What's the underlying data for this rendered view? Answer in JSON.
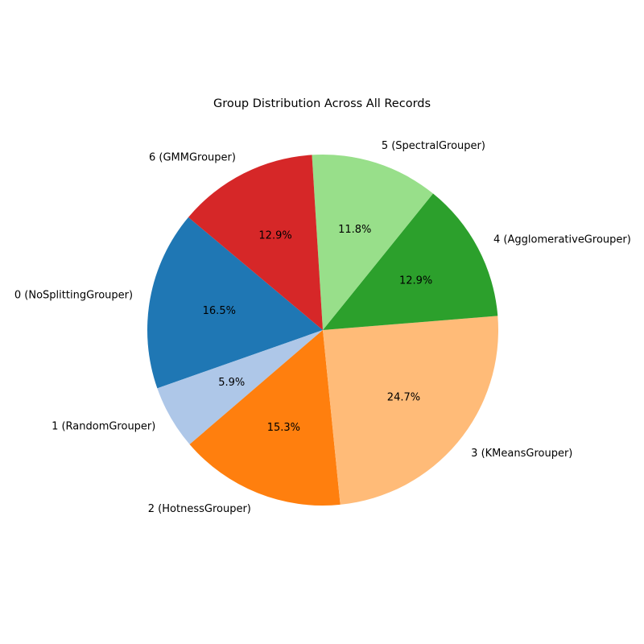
{
  "chart_data": {
    "type": "pie",
    "title": "Group Distribution Across All Records",
    "labels": [
      "0 (NoSplittingGrouper)",
      "1 (RandomGrouper)",
      "2 (HotnessGrouper)",
      "3 (KMeansGrouper)",
      "4 (AgglomerativeGrouper)",
      "5 (SpectralGrouper)",
      "6 (GMMGrouper)"
    ],
    "values": [
      16.5,
      5.9,
      15.3,
      24.7,
      12.9,
      11.8,
      12.9
    ],
    "value_labels": [
      "16.5%",
      "5.9%",
      "15.3%",
      "24.7%",
      "12.9%",
      "11.8%",
      "12.9%"
    ],
    "colors": [
      "#1f77b4",
      "#aec7e8",
      "#ff7f0e",
      "#ffbb78",
      "#2ca02c",
      "#98df8a",
      "#d62728"
    ],
    "start_angle_deg": 140,
    "direction": "counterclockwise",
    "legend": "none"
  }
}
